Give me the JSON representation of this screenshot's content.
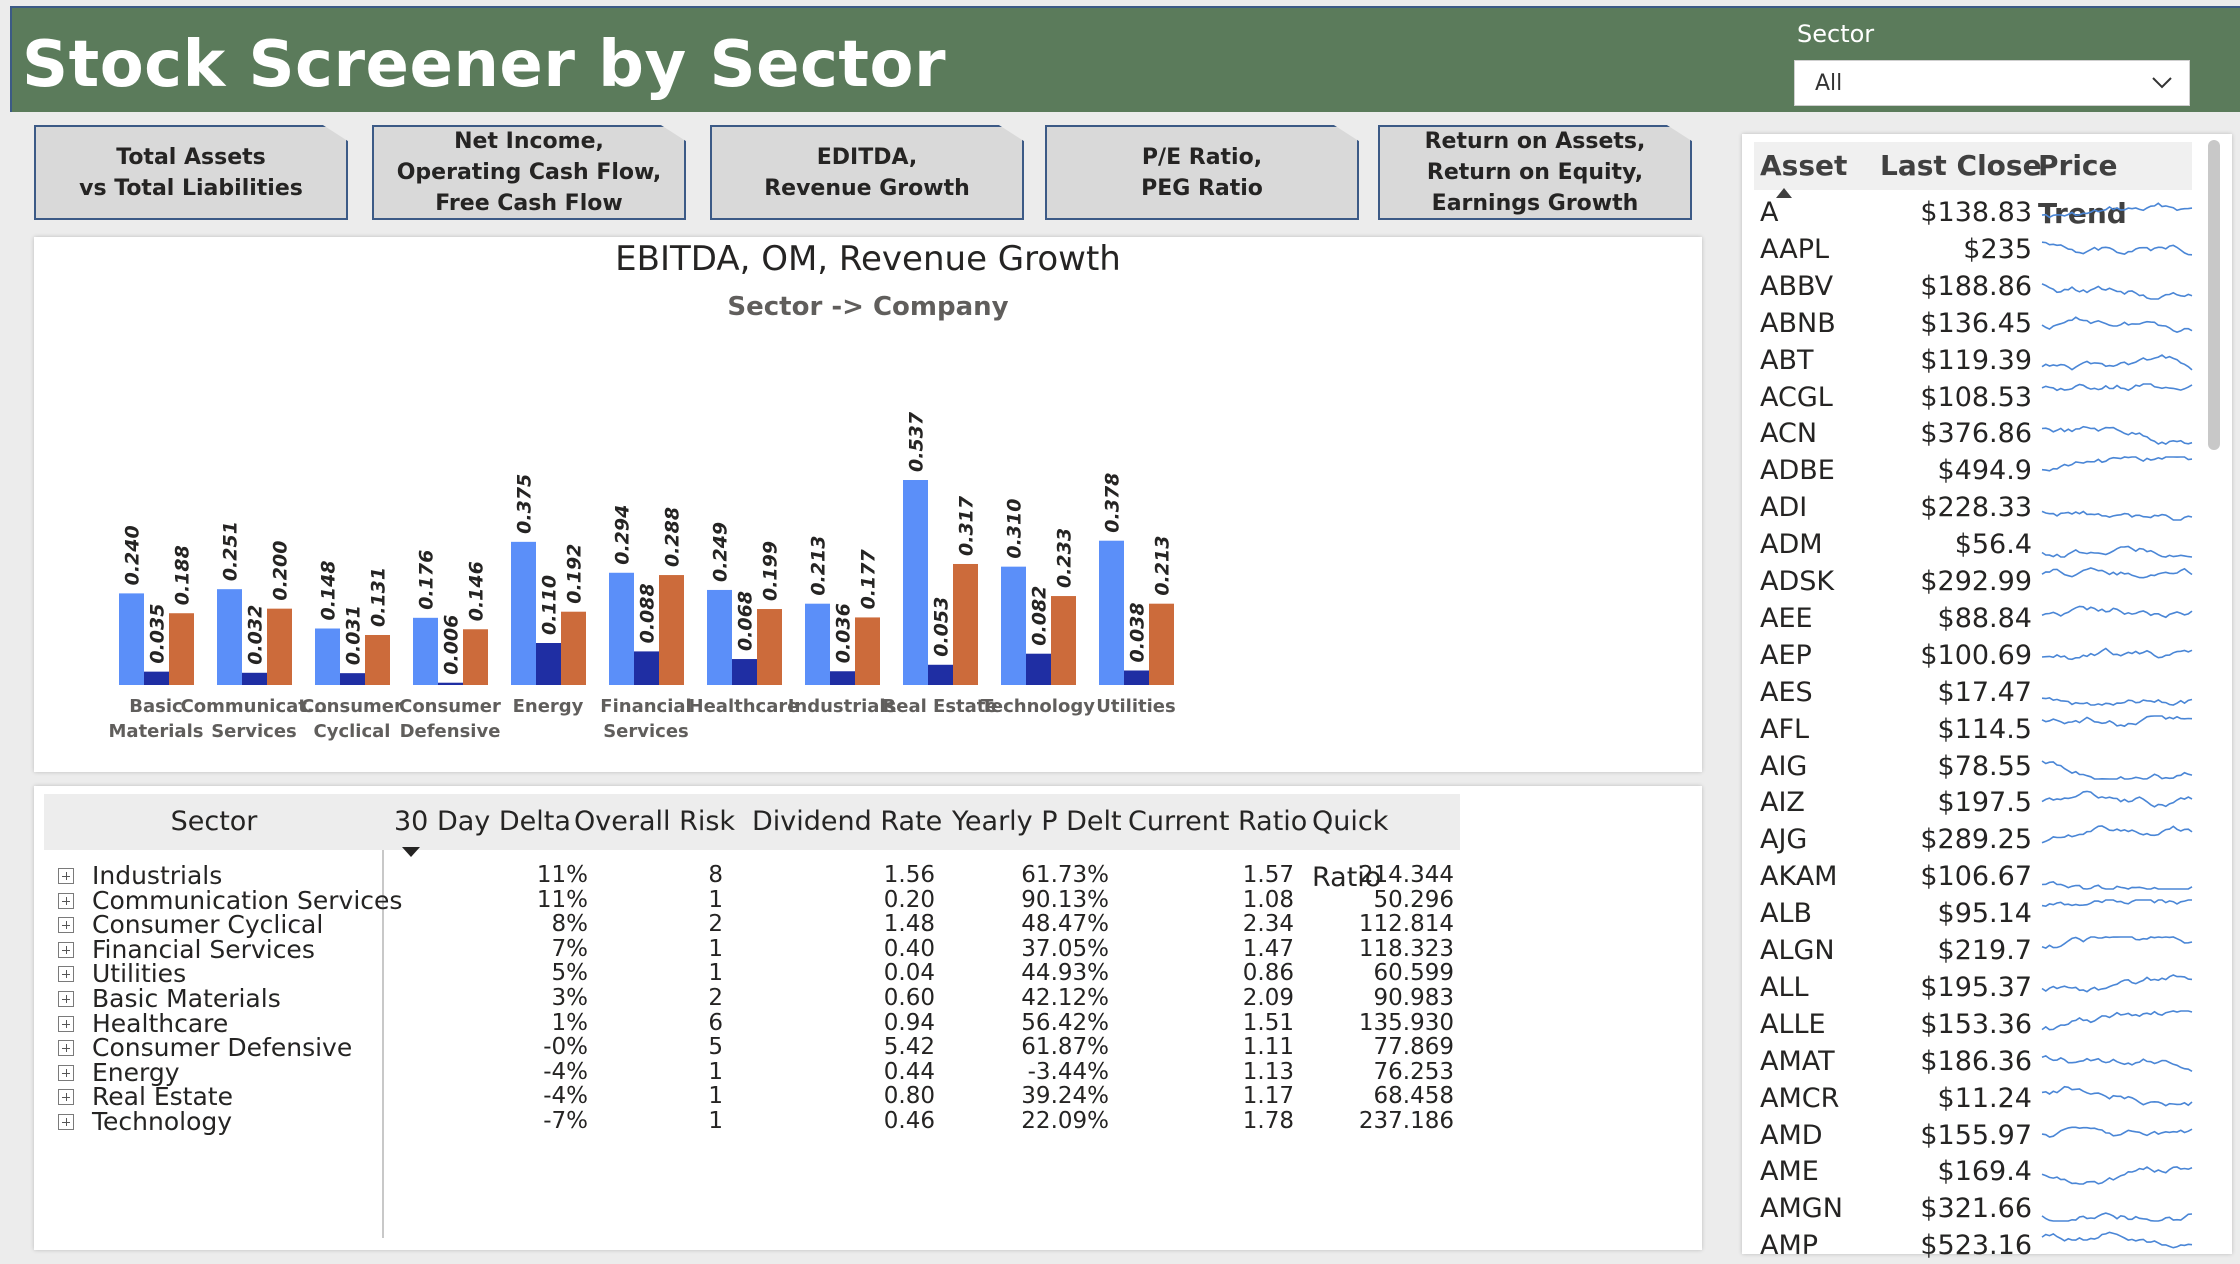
{
  "header": {
    "title": "Stock Screener by Sector",
    "slicer_label": "Sector",
    "slicer_value": "All"
  },
  "nav_buttons": [
    {
      "label": "Total Assets\nvs Total Liabilities"
    },
    {
      "label": "Net Income,\nOperating Cash Flow,\nFree Cash Flow"
    },
    {
      "label": "EDITDA,\nRevenue Growth"
    },
    {
      "label": "P/E Ratio,\nPEG Ratio"
    },
    {
      "label": "Return on Assets,\nReturn on Equity,\nEarnings Growth"
    }
  ],
  "chart": {
    "title": "EBITDA, OM, Revenue Growth",
    "subtitle": "Sector -> Company"
  },
  "chart_data": {
    "type": "bar",
    "title": "EBITDA, OM, Revenue Growth",
    "subtitle": "Sector -> Company",
    "categories": [
      "Basic\nMaterials",
      "Communicat...\nServices",
      "Consumer\nCyclical",
      "Consumer\nDefensive",
      "Energy",
      "Financial\nServices",
      "Healthcare",
      "Industrials",
      "Real Estate",
      "Technology",
      "Utilities"
    ],
    "series": [
      {
        "values": [
          0.24,
          0.251,
          0.148,
          0.176,
          0.375,
          0.294,
          0.249,
          0.213,
          0.537,
          0.31,
          0.378
        ],
        "color": "#5b8ff9"
      },
      {
        "values": [
          0.035,
          0.032,
          0.031,
          0.006,
          0.11,
          0.088,
          0.068,
          0.036,
          0.053,
          0.082,
          0.038
        ],
        "color": "#1f2ea3"
      },
      {
        "values": [
          0.188,
          0.2,
          0.131,
          0.146,
          0.192,
          0.288,
          0.199,
          0.177,
          0.317,
          0.233,
          0.213
        ],
        "color": "#cc6b3b"
      }
    ],
    "ylim": [
      0,
      0.537
    ],
    "legend": false,
    "grid": false
  },
  "table": {
    "columns": [
      "Sector",
      "30 Day Delta",
      "Overall Risk",
      "Dividend Rate",
      "Yearly P Delt",
      "Current Ratio",
      "Quick Ratio"
    ],
    "rows": [
      [
        "Industrials",
        "11%",
        "8",
        "1.56",
        "61.73%",
        "1.57",
        "214.344"
      ],
      [
        "Communication Services",
        "11%",
        "1",
        "0.20",
        "90.13%",
        "1.08",
        "50.296"
      ],
      [
        "Consumer Cyclical",
        "8%",
        "2",
        "1.48",
        "48.47%",
        "2.34",
        "112.814"
      ],
      [
        "Financial Services",
        "7%",
        "1",
        "0.40",
        "37.05%",
        "1.47",
        "118.323"
      ],
      [
        "Utilities",
        "5%",
        "1",
        "0.04",
        "44.93%",
        "0.86",
        "60.599"
      ],
      [
        "Basic Materials",
        "3%",
        "2",
        "0.60",
        "42.12%",
        "2.09",
        "90.983"
      ],
      [
        "Healthcare",
        "1%",
        "6",
        "0.94",
        "56.42%",
        "1.51",
        "135.930"
      ],
      [
        "Consumer Defensive",
        "-0%",
        "5",
        "5.42",
        "61.87%",
        "1.11",
        "77.869"
      ],
      [
        "Energy",
        "-4%",
        "1",
        "0.44",
        "-3.44%",
        "1.13",
        "76.253"
      ],
      [
        "Real Estate",
        "-4%",
        "1",
        "0.80",
        "39.24%",
        "1.17",
        "68.458"
      ],
      [
        "Technology",
        "-7%",
        "1",
        "0.46",
        "22.09%",
        "1.78",
        "237.186"
      ]
    ]
  },
  "assets": {
    "columns": [
      "Asset",
      "Last Close",
      "Price Trend"
    ],
    "rows": [
      {
        "ticker": "A",
        "close": "$138.83"
      },
      {
        "ticker": "AAPL",
        "close": "$235"
      },
      {
        "ticker": "ABBV",
        "close": "$188.86"
      },
      {
        "ticker": "ABNB",
        "close": "$136.45"
      },
      {
        "ticker": "ABT",
        "close": "$119.39"
      },
      {
        "ticker": "ACGL",
        "close": "$108.53"
      },
      {
        "ticker": "ACN",
        "close": "$376.86"
      },
      {
        "ticker": "ADBE",
        "close": "$494.9"
      },
      {
        "ticker": "ADI",
        "close": "$228.33"
      },
      {
        "ticker": "ADM",
        "close": "$56.4"
      },
      {
        "ticker": "ADSK",
        "close": "$292.99"
      },
      {
        "ticker": "AEE",
        "close": "$88.84"
      },
      {
        "ticker": "AEP",
        "close": "$100.69"
      },
      {
        "ticker": "AES",
        "close": "$17.47"
      },
      {
        "ticker": "AFL",
        "close": "$114.5"
      },
      {
        "ticker": "AIG",
        "close": "$78.55"
      },
      {
        "ticker": "AIZ",
        "close": "$197.5"
      },
      {
        "ticker": "AJG",
        "close": "$289.25"
      },
      {
        "ticker": "AKAM",
        "close": "$106.67"
      },
      {
        "ticker": "ALB",
        "close": "$95.14"
      },
      {
        "ticker": "ALGN",
        "close": "$219.7"
      },
      {
        "ticker": "ALL",
        "close": "$195.37"
      },
      {
        "ticker": "ALLE",
        "close": "$153.36"
      },
      {
        "ticker": "AMAT",
        "close": "$186.36"
      },
      {
        "ticker": "AMCR",
        "close": "$11.24"
      },
      {
        "ticker": "AMD",
        "close": "$155.97"
      },
      {
        "ticker": "AME",
        "close": "$169.4"
      },
      {
        "ticker": "AMGN",
        "close": "$321.66"
      },
      {
        "ticker": "AMP",
        "close": "$523.16"
      }
    ],
    "spark_color": "#4a86d6"
  }
}
